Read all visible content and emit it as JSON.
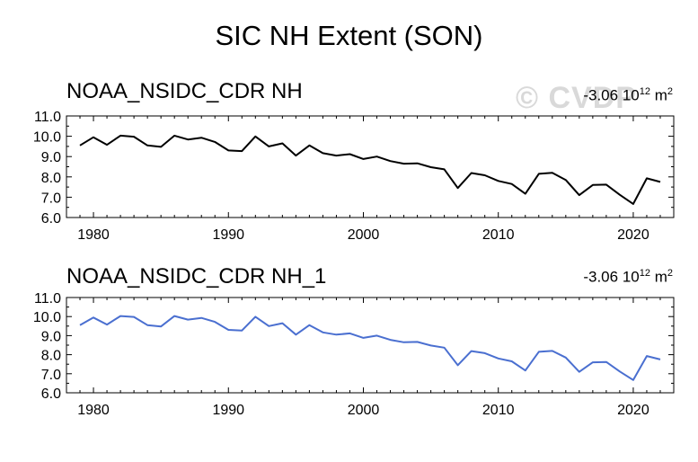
{
  "chart_data": {
    "type": "line",
    "title": "SIC NH Extent (SON)",
    "watermark": "© CVDP",
    "x": [
      1979,
      1980,
      1981,
      1982,
      1983,
      1984,
      1985,
      1986,
      1987,
      1988,
      1989,
      1990,
      1991,
      1992,
      1993,
      1994,
      1995,
      1996,
      1997,
      1998,
      1999,
      2000,
      2001,
      2002,
      2003,
      2004,
      2005,
      2006,
      2007,
      2008,
      2009,
      2010,
      2011,
      2012,
      2013,
      2014,
      2015,
      2016,
      2017,
      2018,
      2019,
      2020,
      2021,
      2022
    ],
    "xlim": [
      1978,
      2023
    ],
    "xticks": [
      "1980",
      "1990",
      "2000",
      "2010",
      "2020"
    ],
    "ylim": [
      6.0,
      11.0
    ],
    "yticks": [
      "6.0",
      "7.0",
      "8.0",
      "9.0",
      "10.0",
      "11.0"
    ],
    "panels": [
      {
        "name": "NOAA_NSIDC_CDR NH",
        "trend_value": "-3.06 10",
        "trend_exp": "12",
        "trend_unit": " m",
        "trend_unit_exp": "2",
        "color": "#000000",
        "values": [
          9.55,
          9.95,
          9.58,
          10.03,
          9.98,
          9.55,
          9.48,
          10.03,
          9.84,
          9.93,
          9.72,
          9.3,
          9.27,
          9.99,
          9.5,
          9.65,
          9.05,
          9.55,
          9.17,
          9.05,
          9.12,
          8.88,
          9.0,
          8.78,
          8.65,
          8.67,
          8.48,
          8.37,
          7.45,
          8.19,
          8.08,
          7.8,
          7.65,
          7.17,
          8.15,
          8.2,
          7.85,
          7.1,
          7.6,
          7.62,
          7.12,
          6.67,
          7.93,
          7.75
        ]
      },
      {
        "name": "NOAA_NSIDC_CDR NH_1",
        "trend_value": "-3.06 10",
        "trend_exp": "12",
        "trend_unit": " m",
        "trend_unit_exp": "2",
        "color": "#4a6fd0",
        "values": [
          9.55,
          9.95,
          9.58,
          10.03,
          9.98,
          9.55,
          9.48,
          10.03,
          9.84,
          9.93,
          9.72,
          9.3,
          9.27,
          9.99,
          9.5,
          9.65,
          9.05,
          9.55,
          9.17,
          9.05,
          9.12,
          8.88,
          9.0,
          8.78,
          8.65,
          8.67,
          8.48,
          8.37,
          7.45,
          8.19,
          8.08,
          7.8,
          7.65,
          7.17,
          8.15,
          8.2,
          7.85,
          7.1,
          7.6,
          7.62,
          7.12,
          6.67,
          7.93,
          7.75
        ]
      }
    ]
  }
}
